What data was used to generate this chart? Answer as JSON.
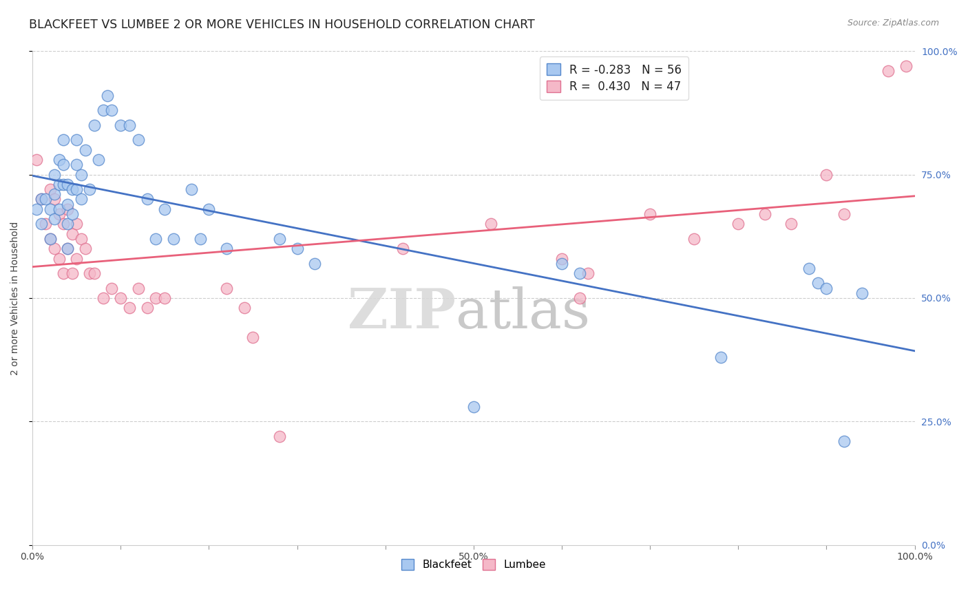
{
  "title": "BLACKFEET VS LUMBEE 2 OR MORE VEHICLES IN HOUSEHOLD CORRELATION CHART",
  "source_text": "Source: ZipAtlas.com",
  "ylabel": "2 or more Vehicles in Household",
  "watermark_part1": "ZIP",
  "watermark_part2": "atlas",
  "blackfeet_R": -0.283,
  "blackfeet_N": 56,
  "lumbee_R": 0.43,
  "lumbee_N": 47,
  "xlim": [
    0.0,
    1.0
  ],
  "ylim": [
    0.0,
    1.0
  ],
  "xticks": [
    0.0,
    0.1,
    0.2,
    0.3,
    0.4,
    0.5,
    0.6,
    0.7,
    0.8,
    0.9,
    1.0
  ],
  "xticklabels": [
    "0.0%",
    "",
    "",
    "",
    "",
    "50.0%",
    "",
    "",
    "",
    "",
    "100.0%"
  ],
  "yticks": [
    0.0,
    0.25,
    0.5,
    0.75,
    1.0
  ],
  "yticklabels_right": [
    "0.0%",
    "25.0%",
    "50.0%",
    "75.0%",
    "100.0%"
  ],
  "blackfeet_color": "#a8c8f0",
  "lumbee_color": "#f5b8c8",
  "blackfeet_edge_color": "#5588cc",
  "lumbee_edge_color": "#e07090",
  "blackfeet_line_color": "#4472c4",
  "lumbee_line_color": "#e8607a",
  "background_color": "#ffffff",
  "grid_color": "#cccccc",
  "title_fontsize": 12.5,
  "blackfeet_x": [
    0.005,
    0.01,
    0.01,
    0.015,
    0.02,
    0.02,
    0.025,
    0.025,
    0.025,
    0.03,
    0.03,
    0.03,
    0.035,
    0.035,
    0.035,
    0.04,
    0.04,
    0.04,
    0.04,
    0.045,
    0.045,
    0.05,
    0.05,
    0.05,
    0.055,
    0.055,
    0.06,
    0.065,
    0.07,
    0.075,
    0.08,
    0.085,
    0.09,
    0.1,
    0.11,
    0.12,
    0.13,
    0.14,
    0.15,
    0.16,
    0.18,
    0.19,
    0.2,
    0.22,
    0.28,
    0.3,
    0.32,
    0.5,
    0.6,
    0.62,
    0.78,
    0.88,
    0.89,
    0.9,
    0.92,
    0.94
  ],
  "blackfeet_y": [
    0.68,
    0.7,
    0.65,
    0.7,
    0.68,
    0.62,
    0.75,
    0.71,
    0.66,
    0.78,
    0.73,
    0.68,
    0.82,
    0.77,
    0.73,
    0.73,
    0.69,
    0.65,
    0.6,
    0.72,
    0.67,
    0.82,
    0.77,
    0.72,
    0.75,
    0.7,
    0.8,
    0.72,
    0.85,
    0.78,
    0.88,
    0.91,
    0.88,
    0.85,
    0.85,
    0.82,
    0.7,
    0.62,
    0.68,
    0.62,
    0.72,
    0.62,
    0.68,
    0.6,
    0.62,
    0.6,
    0.57,
    0.28,
    0.57,
    0.55,
    0.38,
    0.56,
    0.53,
    0.52,
    0.21,
    0.51
  ],
  "lumbee_x": [
    0.005,
    0.01,
    0.015,
    0.02,
    0.02,
    0.025,
    0.025,
    0.03,
    0.03,
    0.035,
    0.035,
    0.04,
    0.04,
    0.045,
    0.045,
    0.05,
    0.05,
    0.055,
    0.06,
    0.065,
    0.07,
    0.08,
    0.09,
    0.1,
    0.11,
    0.12,
    0.13,
    0.14,
    0.15,
    0.22,
    0.24,
    0.25,
    0.28,
    0.42,
    0.52,
    0.6,
    0.62,
    0.63,
    0.7,
    0.75,
    0.8,
    0.83,
    0.86,
    0.9,
    0.92,
    0.97,
    0.99
  ],
  "lumbee_y": [
    0.78,
    0.7,
    0.65,
    0.72,
    0.62,
    0.7,
    0.6,
    0.67,
    0.58,
    0.65,
    0.55,
    0.68,
    0.6,
    0.63,
    0.55,
    0.65,
    0.58,
    0.62,
    0.6,
    0.55,
    0.55,
    0.5,
    0.52,
    0.5,
    0.48,
    0.52,
    0.48,
    0.5,
    0.5,
    0.52,
    0.48,
    0.42,
    0.22,
    0.6,
    0.65,
    0.58,
    0.5,
    0.55,
    0.67,
    0.62,
    0.65,
    0.67,
    0.65,
    0.75,
    0.67,
    0.96,
    0.97
  ]
}
